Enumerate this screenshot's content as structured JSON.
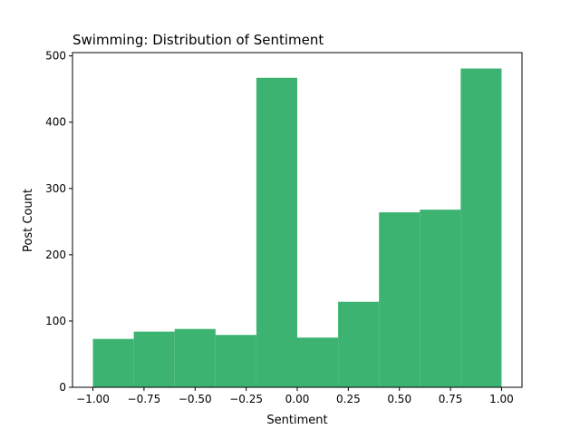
{
  "chart_data": {
    "type": "bar",
    "title": "Swimming: Distribution of Sentiment",
    "xlabel": "Sentiment",
    "ylabel": "Post Count",
    "bin_edges": [
      -1.0,
      -0.8,
      -0.6,
      -0.4,
      -0.2,
      0.0,
      0.2,
      0.4,
      0.6,
      0.8,
      1.0
    ],
    "values": [
      73,
      84,
      88,
      79,
      467,
      75,
      129,
      264,
      268,
      481
    ],
    "xlim": [
      -1.1,
      1.1
    ],
    "ylim": [
      0,
      505
    ],
    "xticks": [
      -1.0,
      -0.75,
      -0.5,
      -0.25,
      0.0,
      0.25,
      0.5,
      0.75,
      1.0
    ],
    "xtick_labels": [
      "−1.00",
      "−0.75",
      "−0.50",
      "−0.25",
      "0.00",
      "0.25",
      "0.50",
      "0.75",
      "1.00"
    ],
    "yticks": [
      0,
      100,
      200,
      300,
      400,
      500
    ],
    "ytick_labels": [
      "0",
      "100",
      "200",
      "300",
      "400",
      "500"
    ],
    "bar_color": "#3cb371",
    "grid": false,
    "legend": "none"
  }
}
